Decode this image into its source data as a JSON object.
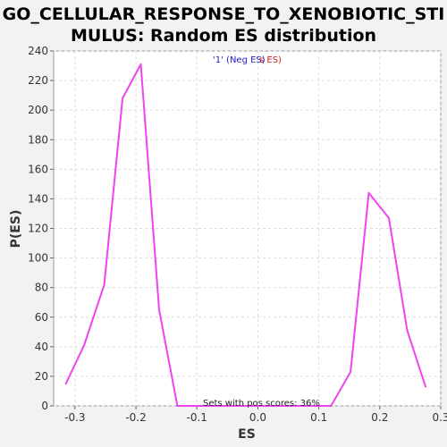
{
  "chart_data": {
    "type": "line",
    "title_line1": "GO_CELLULAR_RESPONSE_TO_XENOBIOTIC_STI",
    "title_line2": "MULUS: Random ES distribution",
    "xlabel": "ES",
    "ylabel": "P(ES)",
    "xlim": [
      -0.335,
      0.3
    ],
    "ylim": [
      0,
      240
    ],
    "xticks": [
      -0.3,
      -0.2,
      -0.1,
      0.0,
      0.1,
      0.2,
      0.3
    ],
    "xtick_labels": [
      "-0.3",
      "-0.2",
      "-0.1",
      "0.0",
      "0.1",
      "0.2",
      "0.3"
    ],
    "yticks": [
      0,
      20,
      40,
      60,
      80,
      100,
      120,
      140,
      160,
      180,
      200,
      220,
      240
    ],
    "ytick_labels": [
      "0",
      "20",
      "40",
      "60",
      "80",
      "100",
      "120",
      "140",
      "160",
      "180",
      "200",
      "220",
      "240"
    ],
    "grid": true,
    "legend_neg": "'1' (Neg ES)",
    "legend_pos_fragment": "s ES)",
    "legend_placement": "top-center",
    "annotation": "Sets with pos scores: 36%",
    "series": [
      {
        "color": "#ee44ee",
        "x": [
          -0.315,
          -0.285,
          -0.252,
          -0.222,
          -0.192,
          -0.162,
          -0.132,
          -0.1,
          0.0,
          0.12,
          0.152,
          0.182,
          0.215,
          0.245,
          0.275
        ],
        "y": [
          15,
          41,
          82,
          208,
          231,
          65,
          0,
          0,
          0,
          0,
          23,
          144,
          127,
          51,
          13
        ]
      }
    ],
    "colors": {
      "plot_background": "#ffffff",
      "page_background": "#f2f2f2",
      "grid": "#dcdcdc",
      "legend_neg": "#2222cc",
      "legend_pos": "#cc2222"
    }
  }
}
